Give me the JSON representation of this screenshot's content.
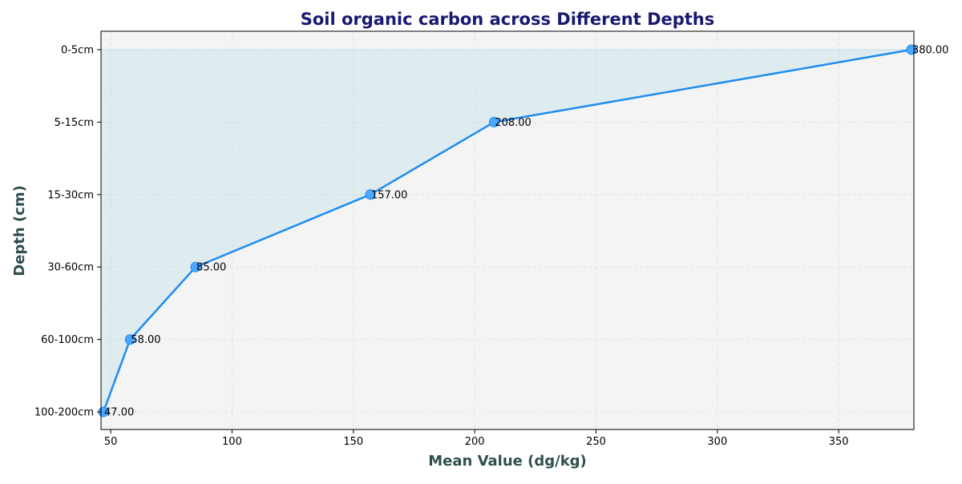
{
  "chart_data": {
    "type": "line",
    "title": "Soil organic carbon across Different Depths",
    "xlabel": "Mean Value (dg/kg)",
    "ylabel": "Depth (cm)",
    "categories": [
      "0-5cm",
      "5-15cm",
      "15-30cm",
      "30-60cm",
      "60-100cm",
      "100-200cm"
    ],
    "values": [
      380,
      208,
      157,
      85,
      58,
      47
    ],
    "value_labels": [
      "380.00",
      "208.00",
      "157.00",
      "85.00",
      "58.00",
      "47.00"
    ],
    "xlim": [
      46,
      381
    ],
    "xticks": [
      50,
      100,
      150,
      200,
      250,
      300,
      350
    ],
    "xtick_labels": [
      "50",
      "100",
      "150",
      "200",
      "250",
      "300",
      "350"
    ],
    "orientation": "horizontal-values",
    "area_fill": true,
    "grid": true,
    "colors": {
      "line": "#1e8cf0",
      "marker": "#4aa8ff",
      "fill": "#add8e6",
      "plot_bg": "#f4f4f4",
      "title": "#191970",
      "axis_label": "#2f4f4f",
      "grid": "#dddddd"
    }
  }
}
